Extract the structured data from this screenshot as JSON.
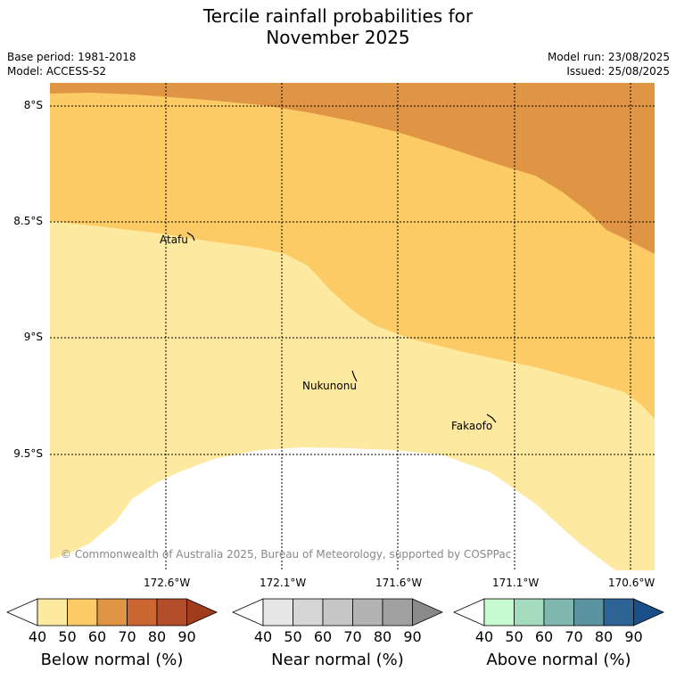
{
  "title": {
    "line1": "Tercile rainfall probabilities for",
    "line2": "November 2025"
  },
  "meta": {
    "base_period": "Base period: 1981-2018",
    "model": "Model: ACCESS-S2",
    "model_run": "Model run: 23/08/2025",
    "issued": "Issued: 25/08/2025"
  },
  "map": {
    "lat_labels": [
      "8°S",
      "8.5°S",
      "9°S",
      "9.5°S"
    ],
    "lon_labels": [
      "172.6°W",
      "172.1°W",
      "171.6°W",
      "171.1°W",
      "170.6°W"
    ],
    "places": [
      {
        "name": "Atafu"
      },
      {
        "name": "Nukunonu"
      },
      {
        "name": "Fakaofo"
      }
    ],
    "copyright": "© Commonwealth of Australia 2025, Bureau of Meteorology, supported by COSPPac",
    "category_colors": {
      "below_40_50": "#fde99f",
      "below_50_60": "#fdcb66",
      "below_60_70": "#e09545"
    }
  },
  "colorbars": [
    {
      "title": "Below normal (%)",
      "ticks": [
        "40",
        "50",
        "60",
        "70",
        "80",
        "90"
      ],
      "colors": [
        "#fde99f",
        "#fdcb66",
        "#e09545",
        "#cc6633",
        "#b34d2a",
        "#a03b1c"
      ]
    },
    {
      "title": "Near normal (%)",
      "ticks": [
        "40",
        "50",
        "60",
        "70",
        "80",
        "90"
      ],
      "colors": [
        "#e6e6e6",
        "#d6d6d6",
        "#c6c6c6",
        "#b3b3b3",
        "#a0a0a0",
        "#8a8a8a"
      ]
    },
    {
      "title": "Above normal (%)",
      "ticks": [
        "40",
        "50",
        "60",
        "70",
        "80",
        "90"
      ],
      "colors": [
        "#c8fbd2",
        "#a4dabe",
        "#80b8b0",
        "#5b93a0",
        "#2d6495",
        "#1b4f8a"
      ]
    }
  ]
}
